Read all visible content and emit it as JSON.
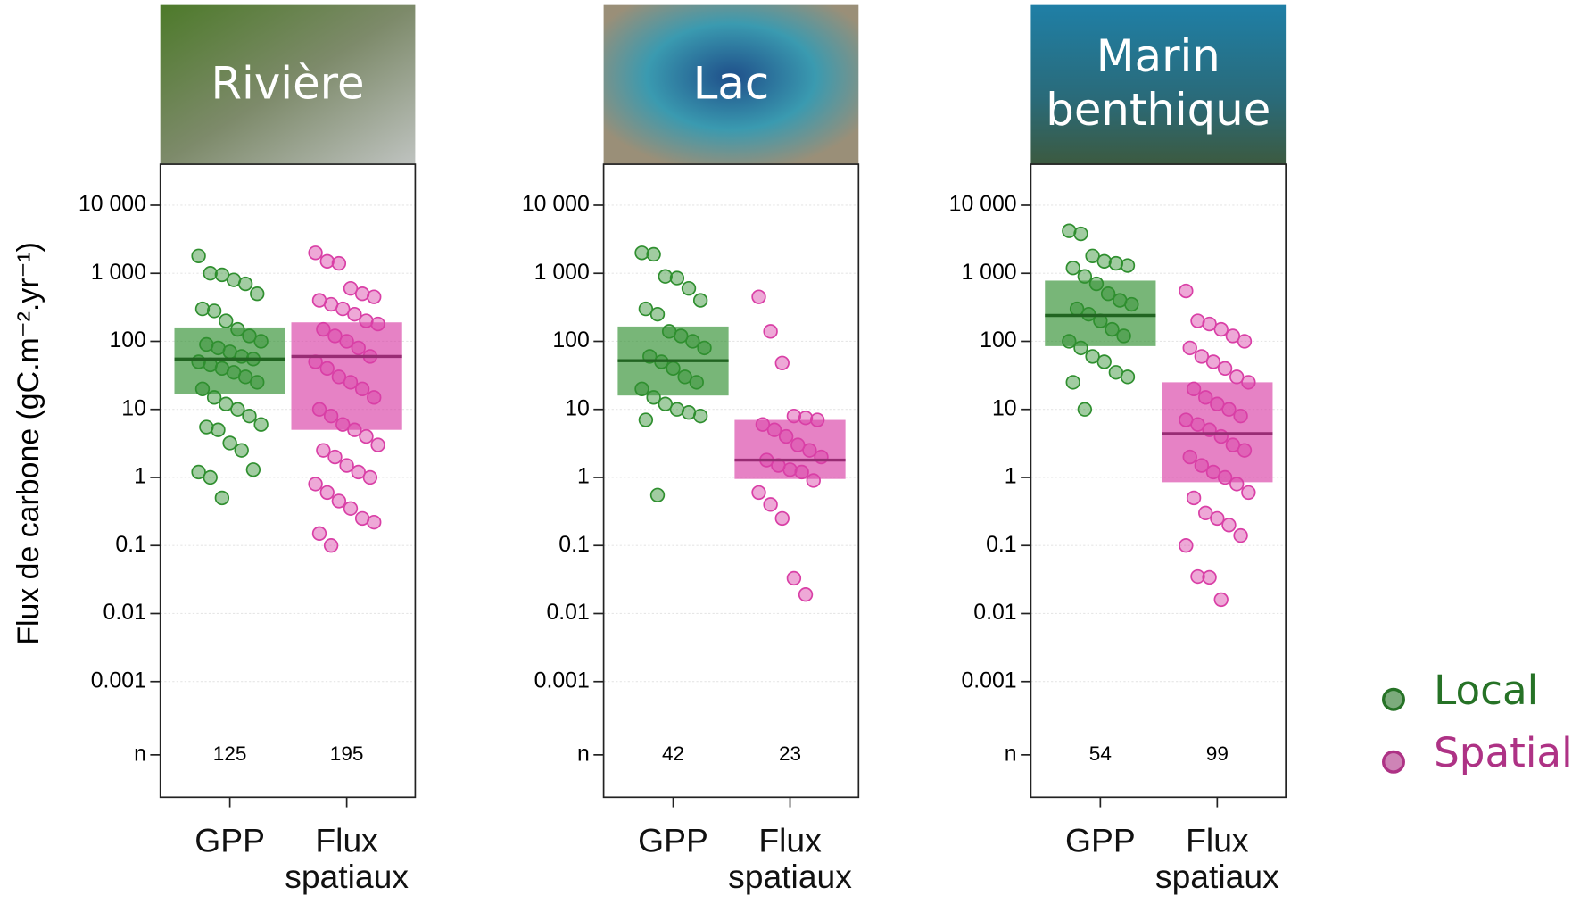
{
  "chart_data": [
    {
      "type": "strip",
      "title": "Rivière",
      "ylabel": "Flux de carbone  (gC.m⁻².yr⁻¹)",
      "log_scale": true,
      "grid": true,
      "categories": [
        "GPP",
        "Flux spatiaux"
      ],
      "n_label": "n",
      "legend_corner": "right",
      "ylim": [
        2e-05,
        40000
      ],
      "yticks": [
        {
          "value": 10000,
          "label": "10 000"
        },
        {
          "value": 1000,
          "label": "1 000"
        },
        100,
        10,
        1,
        0.1,
        0.01,
        0.001
      ],
      "series": [
        {
          "name": "Local",
          "color": "#2f8f2f",
          "n": 125,
          "box": [
            17,
            160
          ],
          "median": 55,
          "values": [
            1800,
            1000,
            950,
            800,
            700,
            500,
            300,
            280,
            200,
            150,
            120,
            100,
            90,
            80,
            70,
            60,
            55,
            50,
            45,
            40,
            35,
            30,
            25,
            20,
            15,
            12,
            10,
            8,
            6,
            5.5,
            5,
            3.2,
            2.5,
            1.3,
            1.2,
            1.0,
            0.5
          ]
        },
        {
          "name": "Spatial",
          "color": "#d93fa6",
          "n": 195,
          "box": [
            5,
            190
          ],
          "median": 60,
          "values": [
            2000,
            1500,
            1400,
            600,
            500,
            450,
            400,
            350,
            300,
            250,
            200,
            180,
            150,
            120,
            100,
            80,
            60,
            50,
            40,
            30,
            25,
            20,
            15,
            10,
            8,
            6,
            5,
            4,
            3,
            2.5,
            2,
            1.5,
            1.2,
            1,
            0.8,
            0.6,
            0.45,
            0.35,
            0.25,
            0.22,
            0.15,
            0.1
          ]
        }
      ]
    },
    {
      "type": "strip",
      "title": "Lac",
      "log_scale": true,
      "grid": true,
      "categories": [
        "GPP",
        "Flux spatiaux"
      ],
      "n_label": "n",
      "ylim": [
        2e-05,
        40000
      ],
      "yticks": [
        {
          "value": 10000,
          "label": "10 000"
        },
        {
          "value": 1000,
          "label": "1 000"
        },
        100,
        10,
        1,
        0.1,
        0.01,
        0.001
      ],
      "series": [
        {
          "name": "Local",
          "color": "#2f8f2f",
          "n": 42,
          "box": [
            16,
            165
          ],
          "median": 52,
          "values": [
            2000,
            1900,
            900,
            850,
            600,
            400,
            300,
            250,
            140,
            120,
            100,
            80,
            60,
            50,
            40,
            30,
            25,
            20,
            15,
            12,
            10,
            9,
            8,
            7,
            0.55
          ]
        },
        {
          "name": "Spatial",
          "color": "#d93fa6",
          "n": 23,
          "box": [
            0.95,
            7
          ],
          "median": 1.8,
          "values": [
            450,
            140,
            48,
            8,
            7.5,
            7,
            6,
            5,
            4,
            3,
            2.5,
            2,
            1.8,
            1.5,
            1.3,
            1.2,
            0.9,
            0.6,
            0.4,
            0.25,
            0.033,
            0.019
          ]
        }
      ]
    },
    {
      "type": "strip",
      "title": "Marin benthique",
      "log_scale": true,
      "grid": true,
      "categories": [
        "GPP",
        "Flux spatiaux"
      ],
      "n_label": "n",
      "ylim": [
        2e-05,
        40000
      ],
      "yticks": [
        {
          "value": 10000,
          "label": "10 000"
        },
        {
          "value": 1000,
          "label": "1 000"
        },
        100,
        10,
        1,
        0.1,
        0.01,
        0.001
      ],
      "series": [
        {
          "name": "Local",
          "color": "#2f8f2f",
          "n": 54,
          "box": [
            85,
            780
          ],
          "median": 240,
          "values": [
            4200,
            3800,
            1800,
            1500,
            1400,
            1300,
            1200,
            900,
            700,
            500,
            400,
            350,
            300,
            250,
            200,
            150,
            120,
            100,
            80,
            60,
            50,
            35,
            30,
            25,
            10
          ]
        },
        {
          "name": "Spatial",
          "color": "#d93fa6",
          "n": 99,
          "box": [
            0.85,
            25
          ],
          "median": 4.4,
          "values": [
            550,
            200,
            180,
            150,
            120,
            100,
            80,
            60,
            50,
            40,
            30,
            25,
            20,
            15,
            12,
            10,
            8,
            7,
            6,
            5,
            4,
            3,
            2.5,
            2,
            1.5,
            1.2,
            1,
            0.8,
            0.6,
            0.5,
            0.3,
            0.25,
            0.2,
            0.14,
            0.1,
            0.035,
            0.034,
            0.016
          ]
        }
      ]
    }
  ]
}
